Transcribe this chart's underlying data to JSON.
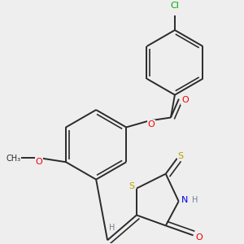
{
  "bg_color": "#eeeeee",
  "bond_color": "#2a2a2a",
  "atom_colors": {
    "S": "#b8a000",
    "N": "#0000ee",
    "O": "#ee0000",
    "Cl": "#00aa00",
    "C": "#2a2a2a",
    "H": "#708090"
  },
  "lw": 1.4
}
